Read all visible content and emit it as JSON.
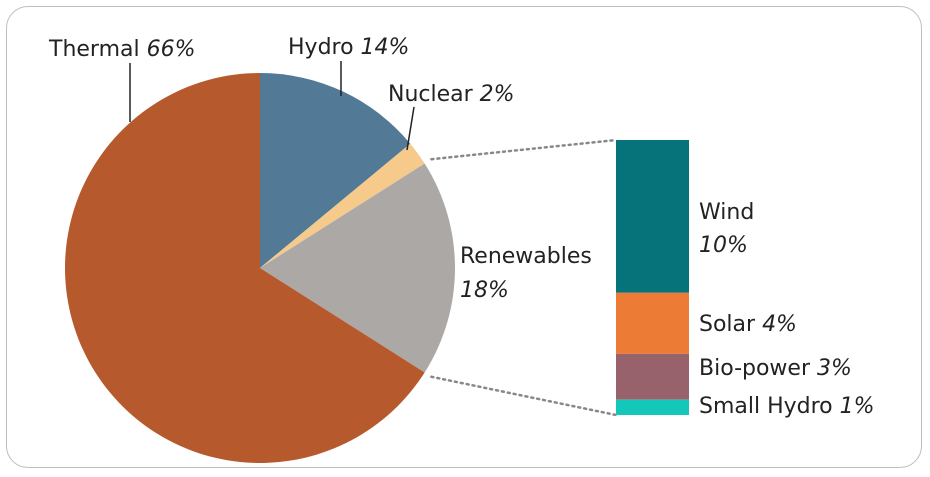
{
  "chart_data": [
    {
      "type": "pie",
      "title": "",
      "slices": [
        {
          "label": "Thermal",
          "pct_label": "66%",
          "value": 66,
          "color": "#B65A2E"
        },
        {
          "label": "Hydro",
          "pct_label": "14%",
          "value": 14,
          "color": "#527A97"
        },
        {
          "label": "Nuclear",
          "pct_label": "2%",
          "value": 2,
          "color": "#F6CA8A"
        },
        {
          "label": "Renewables",
          "pct_label": "18%",
          "value": 18,
          "color": "#ABA8A6"
        }
      ]
    },
    {
      "type": "bar",
      "stacked": true,
      "title": "",
      "segments": [
        {
          "label": "Wind",
          "pct_label": "10%",
          "value": 10,
          "color": "#06727A"
        },
        {
          "label": "Solar",
          "pct_label": "4%",
          "value": 4,
          "color": "#EC7B36"
        },
        {
          "label": "Bio-power",
          "pct_label": "3%",
          "value": 3,
          "color": "#98626C"
        },
        {
          "label": "Small Hydro",
          "pct_label": "1%",
          "value": 1,
          "color": "#13C8B9"
        }
      ]
    }
  ],
  "colors": {
    "leader_line": "#222222",
    "connector": "#888888",
    "frame": "#bdbdbd"
  }
}
